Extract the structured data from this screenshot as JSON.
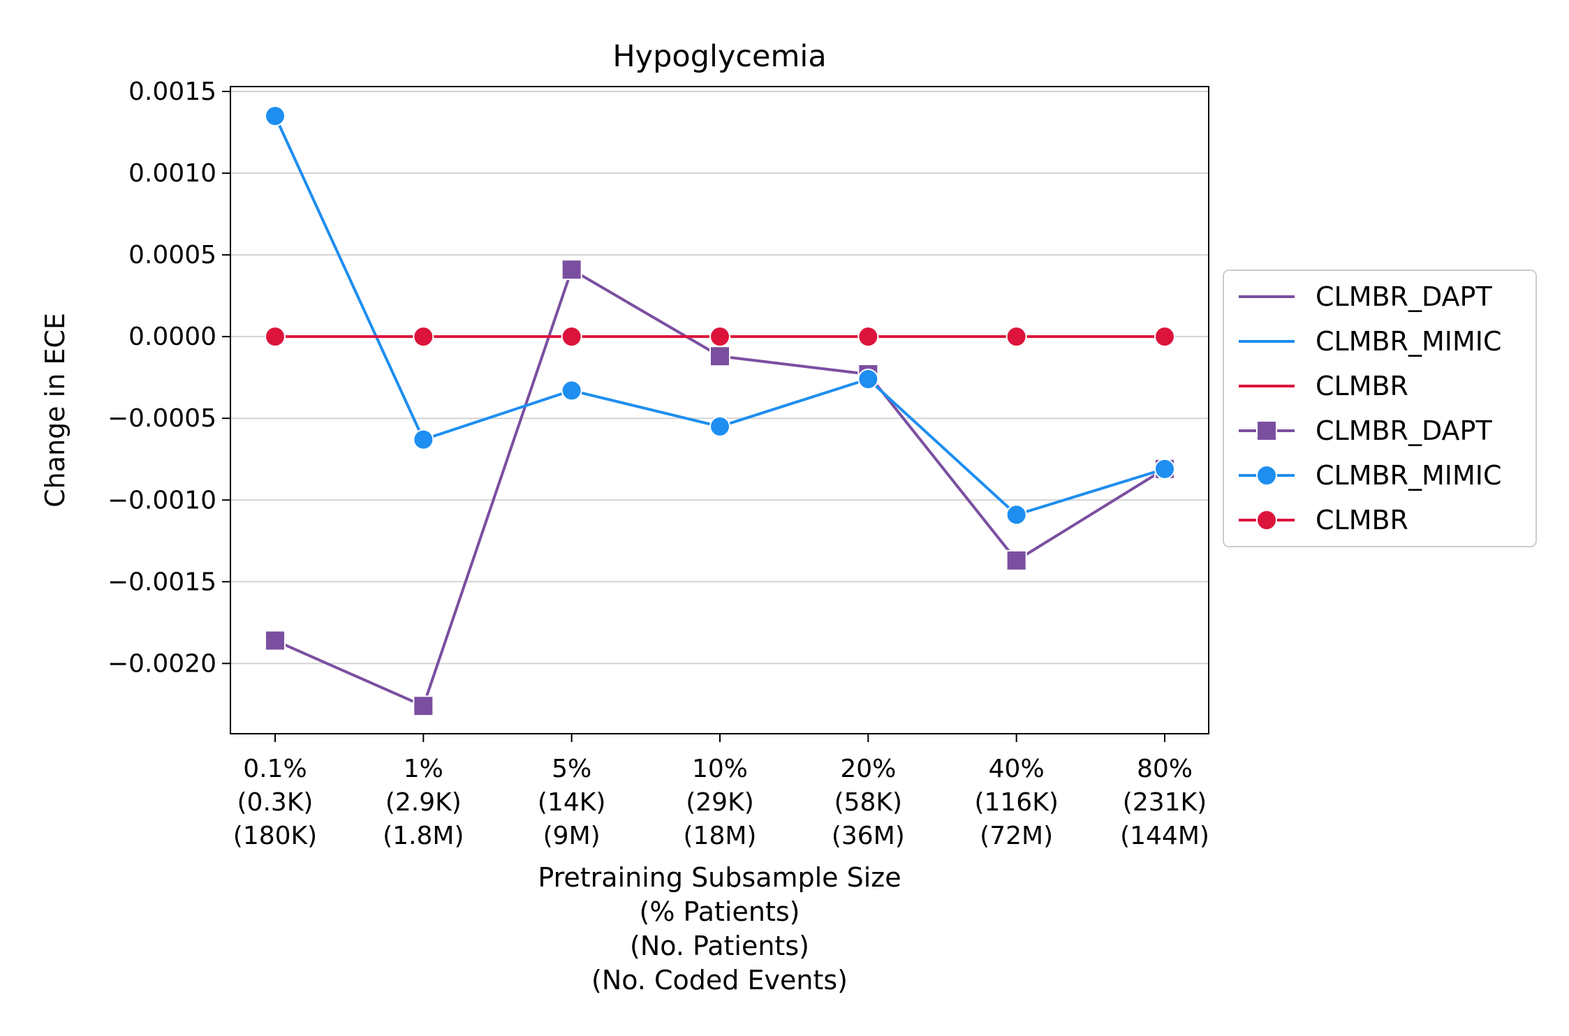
{
  "chart_data": {
    "type": "line",
    "title": "Hypoglycemia",
    "xlabel": [
      "Pretraining Subsample Size",
      "(% Patients)",
      "(No. Patients)",
      "(No. Coded Events)"
    ],
    "ylabel": "Change in ECE",
    "categories": [
      [
        "0.1%",
        "(0.3K)",
        "(180K)"
      ],
      [
        "1%",
        "(2.9K)",
        "(1.8M)"
      ],
      [
        "5%",
        "(14K)",
        "(9M)"
      ],
      [
        "10%",
        "(29K)",
        "(18M)"
      ],
      [
        "20%",
        "(58K)",
        "(36M)"
      ],
      [
        "40%",
        "(116K)",
        "(72M)"
      ],
      [
        "80%",
        "(231K)",
        "(144M)"
      ]
    ],
    "ylim": [
      -0.00243,
      0.00153
    ],
    "yticks": [
      0.0015,
      0.001,
      0.0005,
      0.0,
      -0.0005,
      -0.001,
      -0.0015,
      -0.002
    ],
    "ytick_labels": [
      "0.0015",
      "0.0010",
      "0.0005",
      "0.0000",
      "−0.0005",
      "−0.0010",
      "−0.0015",
      "−0.0020"
    ],
    "grid": "horizontal",
    "legend_position": "right-outside",
    "series": [
      {
        "name": "CLMBR_DAPT",
        "color": "#7b4fa0",
        "marker": "square",
        "values": [
          -0.00186,
          -0.00226,
          0.00041,
          -0.00012,
          -0.00023,
          -0.00137,
          -0.00081
        ]
      },
      {
        "name": "CLMBR_MIMIC",
        "color": "#1e8ef0",
        "marker": "circle",
        "values": [
          0.00135,
          -0.00063,
          -0.00033,
          -0.00055,
          -0.00026,
          -0.00109,
          -0.00081
        ]
      },
      {
        "name": "CLMBR",
        "color": "#dc143c",
        "marker": "circle",
        "values": [
          0.0,
          0.0,
          0.0,
          0.0,
          0.0,
          0.0,
          0.0
        ]
      }
    ],
    "legend": [
      {
        "label": "CLMBR_DAPT",
        "series": 0,
        "style": "line"
      },
      {
        "label": "CLMBR_MIMIC",
        "series": 1,
        "style": "line"
      },
      {
        "label": "CLMBR",
        "series": 2,
        "style": "line"
      },
      {
        "label": "CLMBR_DAPT",
        "series": 0,
        "style": "marker"
      },
      {
        "label": "CLMBR_MIMIC",
        "series": 1,
        "style": "marker"
      },
      {
        "label": "CLMBR",
        "series": 2,
        "style": "marker"
      }
    ]
  }
}
